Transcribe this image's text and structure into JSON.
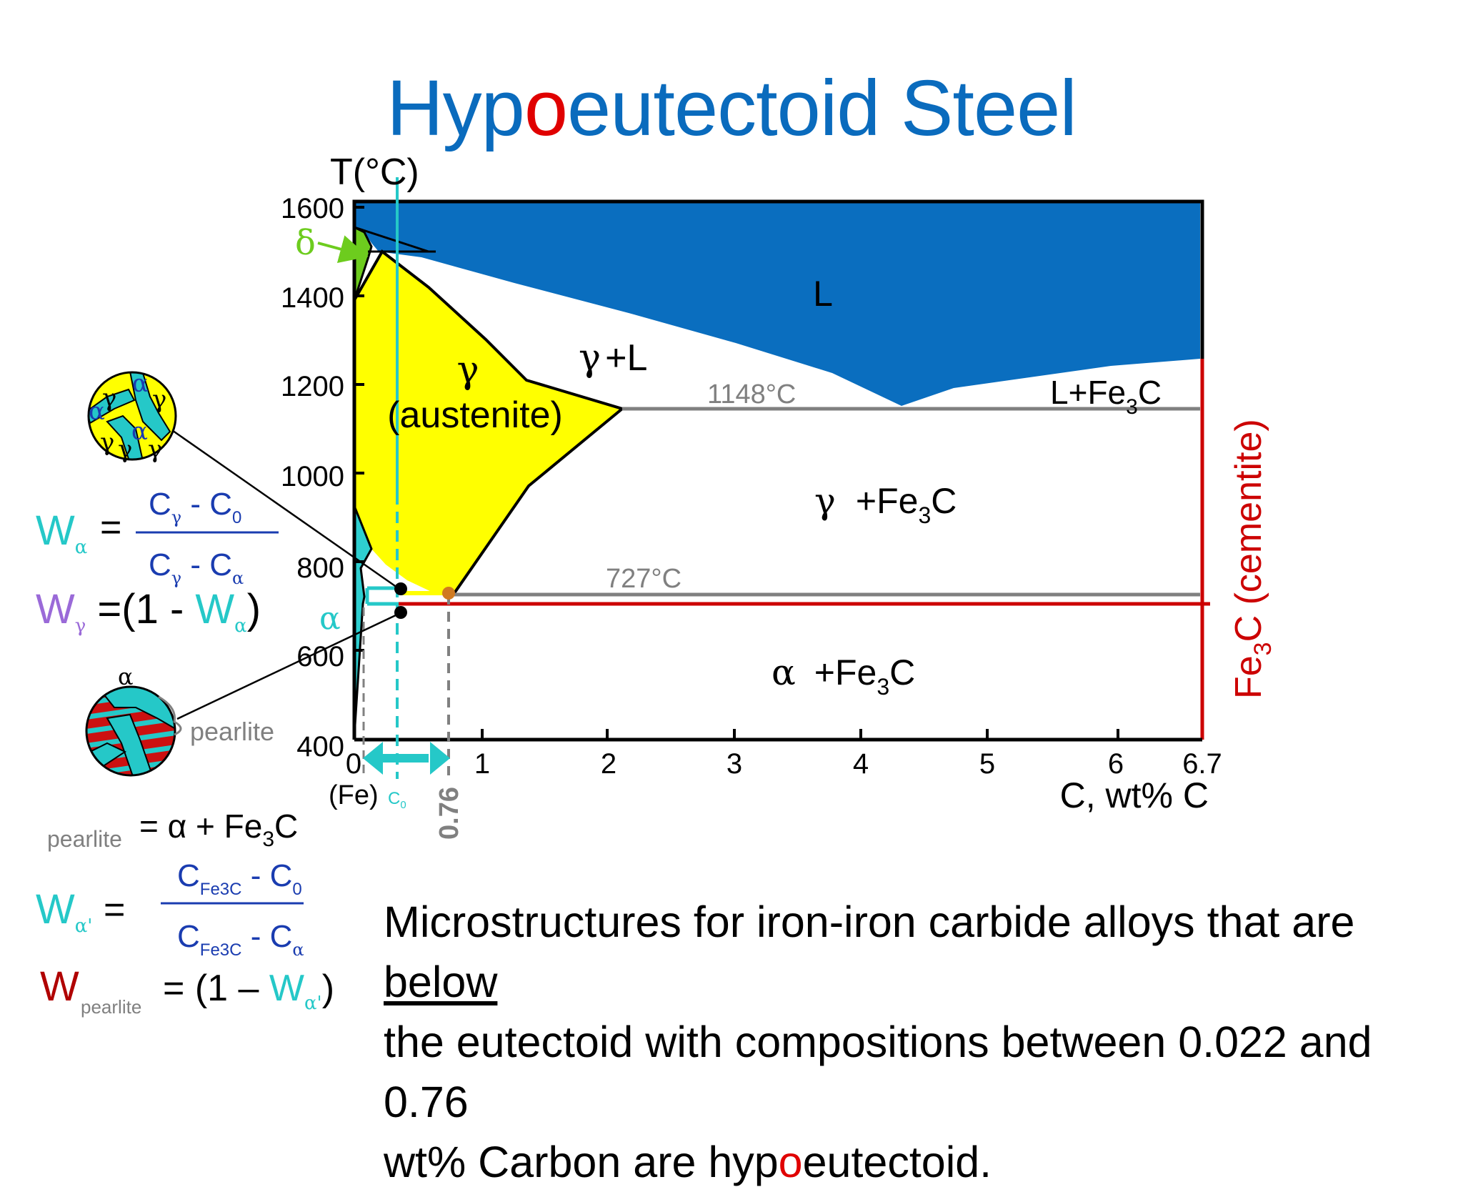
{
  "title": {
    "part1": "Hyp",
    "highlight": "o",
    "part2": "eutectoid Steel"
  },
  "axes": {
    "y_label": "T(°C)",
    "y_ticks": [
      "1600",
      "1400",
      "1200",
      "1000",
      "800",
      "600",
      "400"
    ],
    "x_ticks": [
      "0",
      "1",
      "2",
      "3",
      "4",
      "5",
      "6",
      "6.7"
    ],
    "x_label": "C, wt% C",
    "x_origin_note": "(Fe)",
    "c0_label": "C",
    "c0_sub": "0",
    "eutectoid_comp": "0.76"
  },
  "phases": {
    "liquid": "L",
    "gamma": "γ",
    "austenite": "(austenite)",
    "gamma_plus_l_sym": "γ",
    "gamma_plus_l": "+L",
    "l_plus_fe3c_a": "L+Fe",
    "l_plus_fe3c_sub": "3",
    "l_plus_fe3c_b": "C",
    "gamma_fe3c_sym": "γ",
    "gamma_fe3c_a": "+Fe",
    "gamma_fe3c_sub": "3",
    "gamma_fe3c_b": "C",
    "alpha_fe3c_sym": "α",
    "alpha_fe3c_a": "+Fe",
    "alpha_fe3c_sub": "3",
    "alpha_fe3c_b": "C",
    "delta": "δ",
    "alpha": "α",
    "cementite_a": "Fe",
    "cementite_sub": "3",
    "cementite_b": "C (cementite)"
  },
  "isotherms": {
    "eutectic": "1148°C",
    "eutectoid": "727°C"
  },
  "micro": {
    "top_labels": [
      "γ",
      "α",
      "γ",
      "α",
      "γ",
      "α",
      "γ",
      "γ"
    ],
    "bottom_alpha": "α",
    "pearlite": "pearlite"
  },
  "equations": {
    "w_alpha": {
      "W": "W",
      "sub": "α",
      "eq": "=",
      "num": "C",
      "num_sub": "γ",
      "num_rest": " - C",
      "num_sub2": "0",
      "den": "C",
      "den_sub": "γ",
      "den_rest": " - C",
      "den_sub2": "α"
    },
    "w_gamma": {
      "W": "W",
      "sub": "γ",
      "eq": " =(1 - ",
      "W2": "W",
      "sub2": "α",
      "close": ")"
    },
    "pearlite_def": {
      "label": "pearlite",
      "eq": "= α + Fe",
      "sub": "3",
      "end": "C"
    },
    "w_alpha_prime": {
      "W": "W",
      "sub": "α'",
      "eq": "=",
      "num": "C",
      "num_sub": "Fe3C",
      "num_rest": " - C",
      "num_sub2": "0",
      "den": "C",
      "den_sub": "Fe3C",
      "den_rest": " - C",
      "den_sub2": "α"
    },
    "w_pearlite": {
      "W": "W",
      "sub": "pearlite",
      "eq": "= (1 – ",
      "W2": "W",
      "sub2": "α'",
      "close": ")"
    }
  },
  "statement": {
    "l1a": "Microstructures for iron-iron carbide alloys that are ",
    "l1u": "below",
    "l2": "the eutectoid with compositions between 0.022 and 0.76",
    "l3a": "wt% Carbon are hyp",
    "l3o": "o",
    "l3b": "eutectoid."
  },
  "colors": {
    "title": "#0a6bbd",
    "liquid": "#0a6ebf",
    "austenite": "#ffff00",
    "delta": "#6dcc1e",
    "alpha": "#2ecfd0",
    "cementite": "#cc0000",
    "highlight": "#e00000",
    "isotherm": "#808080",
    "formula_w": "#25c8c8",
    "formula_wg": "#9a6ad8",
    "formula_wp": "#b00000",
    "fraction_text": "#1a3cb0"
  }
}
